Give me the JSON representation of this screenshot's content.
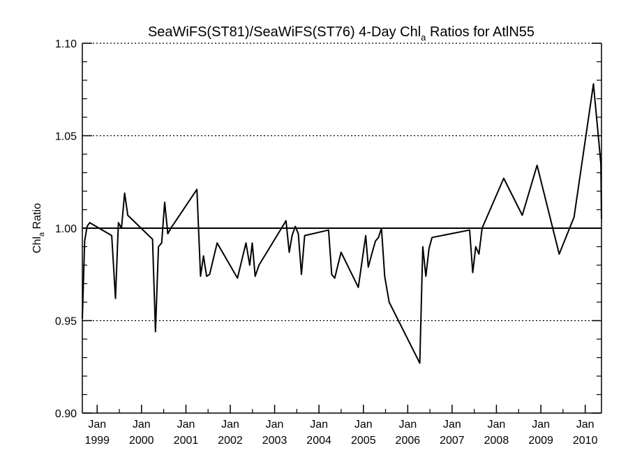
{
  "chart_data": {
    "type": "line",
    "title": {
      "main": "SeaWiFS(ST81)/SeaWiFS(ST76) 4-Day Chl",
      "sub": "a",
      "rest": " Ratios for AtlN55"
    },
    "ylabel": {
      "main": "Chl",
      "sub": "a",
      "rest": " Ratio"
    },
    "ylim": [
      0.9,
      1.1
    ],
    "yticks": [
      {
        "value": 0.9,
        "label": "0.90"
      },
      {
        "value": 0.95,
        "label": "0.95"
      },
      {
        "value": 1.0,
        "label": "1.00"
      },
      {
        "value": 1.05,
        "label": "1.05"
      },
      {
        "value": 1.1,
        "label": "1.10"
      }
    ],
    "xlim": [
      "1998-09-01",
      "2010-05-15"
    ],
    "xticks": [
      {
        "date": "1999-01-01",
        "month": "Jan",
        "year": "1999"
      },
      {
        "date": "2000-01-01",
        "month": "Jan",
        "year": "2000"
      },
      {
        "date": "2001-01-01",
        "month": "Jan",
        "year": "2001"
      },
      {
        "date": "2002-01-01",
        "month": "Jan",
        "year": "2002"
      },
      {
        "date": "2003-01-01",
        "month": "Jan",
        "year": "2003"
      },
      {
        "date": "2004-01-01",
        "month": "Jan",
        "year": "2004"
      },
      {
        "date": "2005-01-01",
        "month": "Jan",
        "year": "2005"
      },
      {
        "date": "2006-01-01",
        "month": "Jan",
        "year": "2006"
      },
      {
        "date": "2007-01-01",
        "month": "Jan",
        "year": "2007"
      },
      {
        "date": "2008-01-01",
        "month": "Jan",
        "year": "2008"
      },
      {
        "date": "2009-01-01",
        "month": "Jan",
        "year": "2009"
      },
      {
        "date": "2010-01-01",
        "month": "Jan",
        "year": "2010"
      }
    ],
    "reference_line": 1.0,
    "grid": {
      "dotted_y": [
        0.95,
        1.05,
        1.1
      ]
    },
    "series": [
      {
        "x": [
          "1998-09-01",
          "1998-09-20",
          "1998-10-10",
          "1998-11-01",
          "1999-05-01",
          "1999-06-01",
          "1999-06-25",
          "1999-07-20",
          "1999-08-15",
          "1999-09-10",
          "2000-04-01",
          "2000-04-25",
          "2000-05-20",
          "2000-06-15",
          "2000-07-10",
          "2000-08-05",
          "2000-08-30",
          "2001-04-01",
          "2001-05-01",
          "2001-05-25",
          "2001-06-20",
          "2001-07-15",
          "2001-09-15",
          "2002-03-01",
          "2002-05-10",
          "2002-06-10",
          "2002-07-01",
          "2002-07-25",
          "2002-08-25",
          "2003-04-05",
          "2003-05-01",
          "2003-05-25",
          "2003-06-20",
          "2003-07-15",
          "2003-08-10",
          "2003-09-05",
          "2004-03-20",
          "2004-04-15",
          "2004-05-10",
          "2004-07-01",
          "2004-11-20",
          "2005-01-20",
          "2005-02-10",
          "2005-03-15",
          "2005-04-10",
          "2005-05-05",
          "2005-05-30",
          "2005-06-25",
          "2005-08-01",
          "2006-04-10",
          "2006-05-05",
          "2006-05-30",
          "2006-06-25",
          "2006-07-20",
          "2007-05-25",
          "2007-06-20",
          "2007-07-15",
          "2007-08-10",
          "2007-09-05",
          "2008-03-01",
          "2008-08-01",
          "2008-12-01",
          "2009-06-01",
          "2009-10-01",
          "2010-03-10",
          "2010-05-10",
          "2010-05-15"
        ],
        "y": [
          0.951,
          0.993,
          1.001,
          1.003,
          0.996,
          0.962,
          1.003,
          1.0,
          1.019,
          1.007,
          0.994,
          0.944,
          0.99,
          0.992,
          1.014,
          0.997,
          1.0,
          1.021,
          0.974,
          0.985,
          0.974,
          0.975,
          0.992,
          0.973,
          0.992,
          0.98,
          0.992,
          0.974,
          0.98,
          1.004,
          0.987,
          0.996,
          1.001,
          0.997,
          0.975,
          0.996,
          0.999,
          0.975,
          0.973,
          0.987,
          0.968,
          0.996,
          0.979,
          0.987,
          0.993,
          0.995,
          1.0,
          0.974,
          0.96,
          0.927,
          0.99,
          0.974,
          0.989,
          0.995,
          0.999,
          0.976,
          0.99,
          0.986,
          1.0,
          1.027,
          1.007,
          1.034,
          0.986,
          1.006,
          1.078,
          1.035,
          1.005
        ]
      }
    ]
  }
}
